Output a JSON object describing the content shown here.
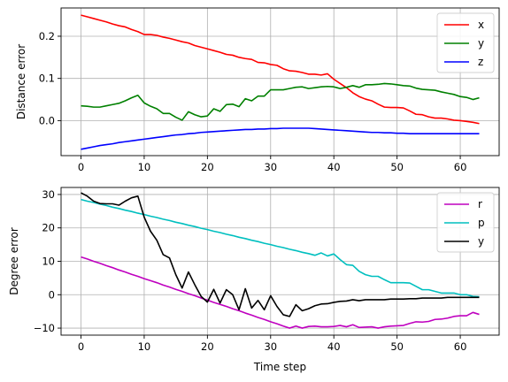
{
  "chart_data": [
    {
      "type": "line",
      "title": "",
      "xlabel": "",
      "ylabel": "Distance error",
      "xlim": [
        -3.15,
        66.15
      ],
      "ylim": [
        -0.083,
        0.267
      ],
      "xticks": [
        0,
        10,
        20,
        30,
        40,
        50,
        60
      ],
      "yticks": [
        0.0,
        0.1,
        0.2
      ],
      "ytick_labels": [
        "0.0",
        "0.1",
        "0.2"
      ],
      "grid": true,
      "legend": "upper right",
      "x": [
        0,
        1,
        2,
        3,
        4,
        5,
        6,
        7,
        8,
        9,
        10,
        11,
        12,
        13,
        14,
        15,
        16,
        17,
        18,
        19,
        20,
        21,
        22,
        23,
        24,
        25,
        26,
        27,
        28,
        29,
        30,
        31,
        32,
        33,
        34,
        35,
        36,
        37,
        38,
        39,
        40,
        41,
        42,
        43,
        44,
        45,
        46,
        47,
        48,
        49,
        50,
        51,
        52,
        53,
        54,
        55,
        56,
        57,
        58,
        59,
        60,
        61,
        62,
        63
      ],
      "series": [
        {
          "name": "x",
          "color": "#ff0000",
          "values": [
            0.25,
            0.246,
            0.242,
            0.238,
            0.234,
            0.229,
            0.225,
            0.222,
            0.216,
            0.211,
            0.204,
            0.204,
            0.202,
            0.198,
            0.195,
            0.191,
            0.187,
            0.184,
            0.178,
            0.174,
            0.17,
            0.166,
            0.162,
            0.157,
            0.155,
            0.15,
            0.147,
            0.145,
            0.138,
            0.137,
            0.133,
            0.131,
            0.123,
            0.118,
            0.117,
            0.114,
            0.11,
            0.11,
            0.108,
            0.111,
            0.098,
            0.088,
            0.078,
            0.066,
            0.057,
            0.051,
            0.047,
            0.039,
            0.032,
            0.031,
            0.031,
            0.03,
            0.023,
            0.015,
            0.014,
            0.009,
            0.006,
            0.006,
            0.004,
            0.001,
            0.0,
            -0.002,
            -0.004,
            -0.007
          ]
        },
        {
          "name": "y",
          "color": "#008000",
          "values": [
            0.035,
            0.034,
            0.032,
            0.032,
            0.035,
            0.038,
            0.041,
            0.047,
            0.054,
            0.06,
            0.042,
            0.034,
            0.028,
            0.017,
            0.017,
            0.008,
            0.001,
            0.021,
            0.014,
            0.009,
            0.011,
            0.028,
            0.022,
            0.038,
            0.039,
            0.033,
            0.052,
            0.047,
            0.058,
            0.058,
            0.073,
            0.073,
            0.073,
            0.076,
            0.079,
            0.08,
            0.076,
            0.078,
            0.08,
            0.081,
            0.08,
            0.076,
            0.079,
            0.083,
            0.079,
            0.085,
            0.085,
            0.086,
            0.088,
            0.087,
            0.085,
            0.083,
            0.082,
            0.077,
            0.074,
            0.073,
            0.072,
            0.068,
            0.065,
            0.062,
            0.057,
            0.055,
            0.05,
            0.054
          ]
        },
        {
          "name": "z",
          "color": "#0000ff",
          "values": [
            -0.068,
            -0.065,
            -0.062,
            -0.059,
            -0.057,
            -0.055,
            -0.052,
            -0.05,
            -0.048,
            -0.046,
            -0.044,
            -0.042,
            -0.04,
            -0.038,
            -0.036,
            -0.034,
            -0.033,
            -0.031,
            -0.03,
            -0.028,
            -0.027,
            -0.026,
            -0.025,
            -0.024,
            -0.023,
            -0.022,
            -0.021,
            -0.021,
            -0.02,
            -0.02,
            -0.019,
            -0.019,
            -0.018,
            -0.018,
            -0.018,
            -0.018,
            -0.018,
            -0.019,
            -0.02,
            -0.021,
            -0.022,
            -0.023,
            -0.024,
            -0.025,
            -0.026,
            -0.027,
            -0.028,
            -0.028,
            -0.029,
            -0.029,
            -0.03,
            -0.03,
            -0.031,
            -0.031,
            -0.031,
            -0.031,
            -0.031,
            -0.031,
            -0.031,
            -0.031,
            -0.031,
            -0.031,
            -0.031,
            -0.031
          ]
        }
      ]
    },
    {
      "type": "line",
      "title": "",
      "xlabel": "Time step",
      "ylabel": "Degree error",
      "xlim": [
        -3.15,
        66.15
      ],
      "ylim": [
        -12.1,
        32.1
      ],
      "xticks": [
        0,
        10,
        20,
        30,
        40,
        50,
        60
      ],
      "yticks": [
        -10,
        0,
        10,
        20,
        30
      ],
      "ytick_labels": [
        "−10",
        "0",
        "10",
        "20",
        "30"
      ],
      "grid": true,
      "legend": "upper right",
      "x": [
        0,
        1,
        2,
        3,
        4,
        5,
        6,
        7,
        8,
        9,
        10,
        11,
        12,
        13,
        14,
        15,
        16,
        17,
        18,
        19,
        20,
        21,
        22,
        23,
        24,
        25,
        26,
        27,
        28,
        29,
        30,
        31,
        32,
        33,
        34,
        35,
        36,
        37,
        38,
        39,
        40,
        41,
        42,
        43,
        44,
        45,
        46,
        47,
        48,
        49,
        50,
        51,
        52,
        53,
        54,
        55,
        56,
        57,
        58,
        59,
        60,
        61,
        62,
        63
      ],
      "series": [
        {
          "name": "r",
          "color": "#bf00bf",
          "values": [
            11.3,
            10.7,
            10.0,
            9.4,
            8.7,
            8.1,
            7.4,
            6.8,
            6.1,
            5.5,
            4.8,
            4.2,
            3.6,
            2.9,
            2.3,
            1.6,
            1.0,
            0.3,
            -0.3,
            -1.0,
            -1.6,
            -2.3,
            -2.9,
            -3.5,
            -4.2,
            -4.8,
            -5.5,
            -6.1,
            -6.8,
            -7.4,
            -8.1,
            -8.7,
            -9.4,
            -10.0,
            -9.4,
            -10.0,
            -9.5,
            -9.4,
            -9.6,
            -9.6,
            -9.5,
            -9.2,
            -9.6,
            -9.0,
            -9.8,
            -9.7,
            -9.6,
            -10.0,
            -9.6,
            -9.4,
            -9.3,
            -9.2,
            -8.6,
            -8.1,
            -8.2,
            -8.0,
            -7.4,
            -7.3,
            -7.0,
            -6.5,
            -6.3,
            -6.3,
            -5.3,
            -5.9
          ]
        },
        {
          "name": "p",
          "color": "#00bfbf",
          "values": [
            28.5,
            28.0,
            27.6,
            27.1,
            26.7,
            26.2,
            25.8,
            25.3,
            24.9,
            24.4,
            24.0,
            23.5,
            23.1,
            22.6,
            22.2,
            21.7,
            21.3,
            20.8,
            20.4,
            19.9,
            19.5,
            19.0,
            18.6,
            18.1,
            17.7,
            17.2,
            16.8,
            16.3,
            15.9,
            15.4,
            15.0,
            14.5,
            14.1,
            13.6,
            13.2,
            12.7,
            12.3,
            11.8,
            12.5,
            11.6,
            12.2,
            10.5,
            9.0,
            8.8,
            7.0,
            6.0,
            5.5,
            5.5,
            4.5,
            3.6,
            3.6,
            3.6,
            3.5,
            2.5,
            1.5,
            1.5,
            1.0,
            0.5,
            0.5,
            0.5,
            0.0,
            0.0,
            -0.5,
            -0.6
          ]
        },
        {
          "name": "y",
          "color": "#000000",
          "values": [
            30.5,
            29.5,
            28.0,
            27.3,
            27.2,
            27.2,
            26.8,
            28.0,
            29.0,
            29.5,
            23.2,
            19.0,
            16.3,
            12.0,
            11.0,
            6.0,
            2.0,
            6.8,
            3.0,
            -0.5,
            -2.2,
            1.6,
            -2.5,
            1.5,
            0.0,
            -4.5,
            1.8,
            -4.0,
            -1.7,
            -4.5,
            -0.3,
            -3.5,
            -6.0,
            -6.5,
            -3.0,
            -4.8,
            -4.2,
            -3.3,
            -2.8,
            -2.7,
            -2.3,
            -2.0,
            -1.9,
            -1.5,
            -1.8,
            -1.5,
            -1.5,
            -1.5,
            -1.5,
            -1.3,
            -1.3,
            -1.3,
            -1.2,
            -1.2,
            -1.0,
            -1.0,
            -1.0,
            -1.0,
            -0.8,
            -0.8,
            -0.8,
            -0.8,
            -0.8,
            -0.8
          ]
        }
      ]
    }
  ]
}
